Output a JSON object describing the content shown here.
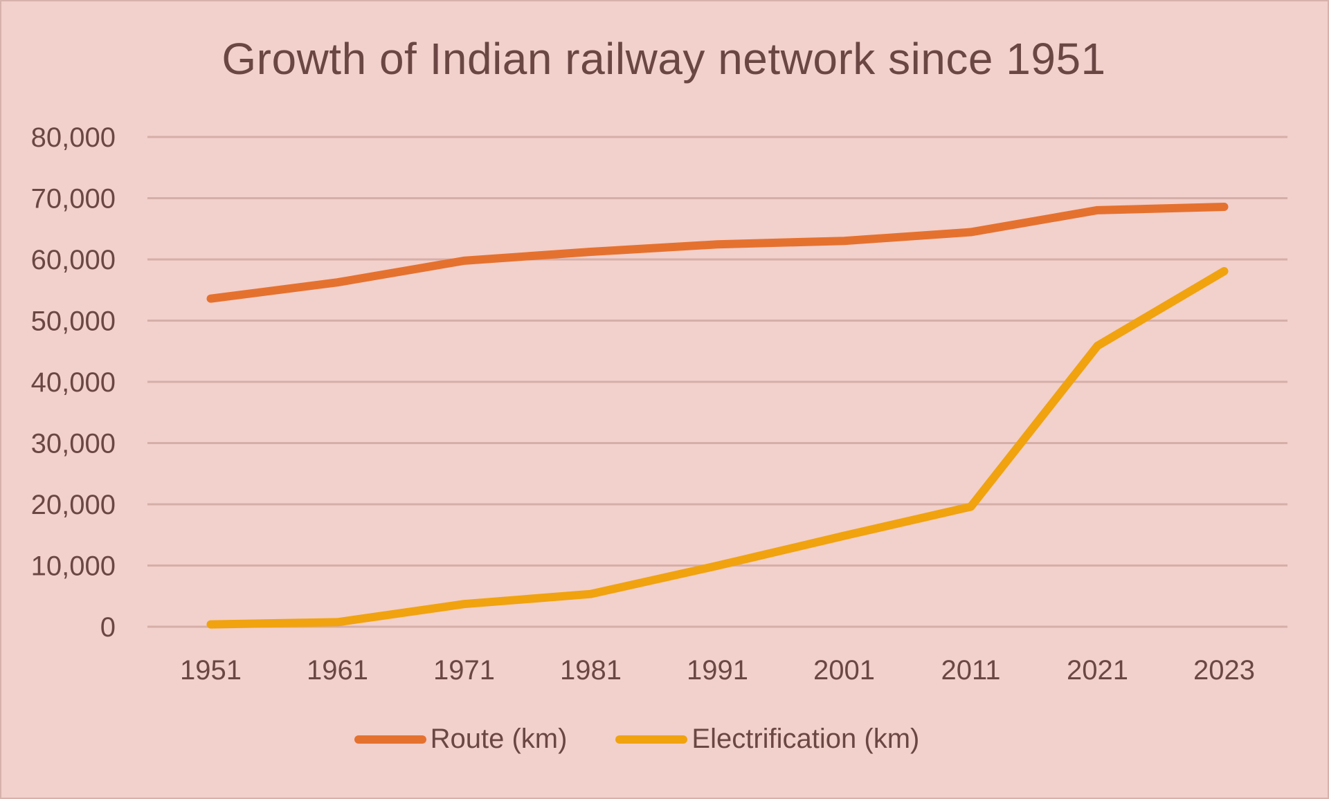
{
  "chart_data": {
    "type": "line",
    "title": "Growth of Indian railway network since 1951",
    "xlabel": "",
    "ylabel": "",
    "categories": [
      "1951",
      "1961",
      "1971",
      "1981",
      "1991",
      "2001",
      "2011",
      "2021",
      "2023"
    ],
    "y_ticks": [
      "0",
      "10,000",
      "20,000",
      "30,000",
      "40,000",
      "50,000",
      "60,000",
      "70,000",
      "80,000"
    ],
    "ylim": [
      0,
      80000
    ],
    "grid": true,
    "legend_position": "bottom",
    "series": [
      {
        "name": "Route (km)",
        "color": "#e5712f",
        "values": [
          53596,
          56247,
          59790,
          61240,
          62458,
          63028,
          64460,
          68043,
          68584
        ]
      },
      {
        "name": "Electrification (km)",
        "color": "#f0a30f",
        "values": [
          388,
          748,
          3706,
          5345,
          9968,
          14856,
          19607,
          45881,
          58074
        ]
      }
    ]
  }
}
